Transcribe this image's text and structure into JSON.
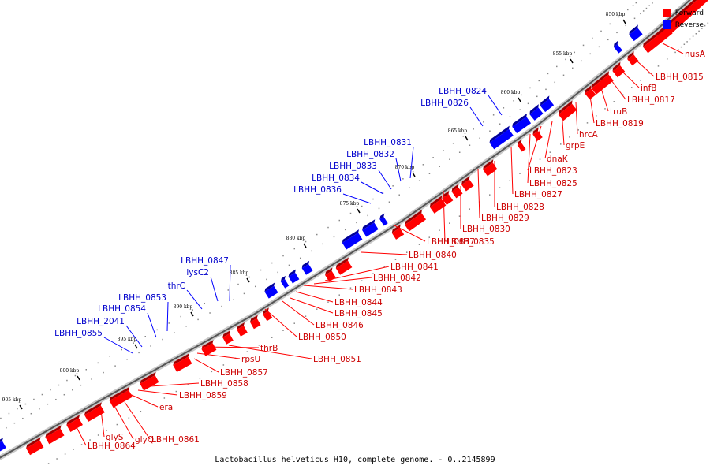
{
  "legend": {
    "forward_label": "Forward",
    "reverse_label": "Reverse",
    "forward_color": "#ff0000",
    "reverse_color": "#0000ff"
  },
  "caption": "Lactobacillus helveticus H10, complete genome. - 0..2145899",
  "scale_ticks": [
    "850 kbp",
    "855 kbp",
    "860 kbp",
    "865 kbp",
    "870 kbp",
    "875 kbp",
    "880 kbp",
    "885 kbp",
    "890 kbp",
    "895 kbp",
    "900 kbp",
    "905 kbp"
  ],
  "forward_genes": [
    "nusA",
    "LBHH_0815",
    "infB",
    "LBHH_0817",
    "truB",
    "LBHH_0819",
    "hrcA",
    "grpE",
    "dnaK",
    "LBHH_0823",
    "LBHH_0825",
    "LBHH_0827",
    "LBHH_0828",
    "LBHH_0829",
    "LBHH_0830",
    "LBHH_0835",
    "LBHH_0837",
    "LBHH_0840",
    "LBHH_0841",
    "LBHH_0842",
    "LBHH_0843",
    "LBHH_0844",
    "LBHH_0845",
    "LBHH_0846",
    "LBHH_0850",
    "LBHH_0851",
    "thrB",
    "rpsU",
    "LBHH_0857",
    "LBHH_0858",
    "LBHH_0859",
    "era",
    "LBHH_0861",
    "glyQ",
    "glyS",
    "LBHH_0864"
  ],
  "reverse_genes": [
    "LBHH_0824",
    "LBHH_0826",
    "LBHH_0831",
    "LBHH_0832",
    "LBHH_0833",
    "LBHH_0834",
    "LBHH_0836",
    "LBHH_0847",
    "lysC2",
    "thrC",
    "LBHH_0853",
    "LBHH_0854",
    "LBHH_2041",
    "LBHH_0855"
  ]
}
